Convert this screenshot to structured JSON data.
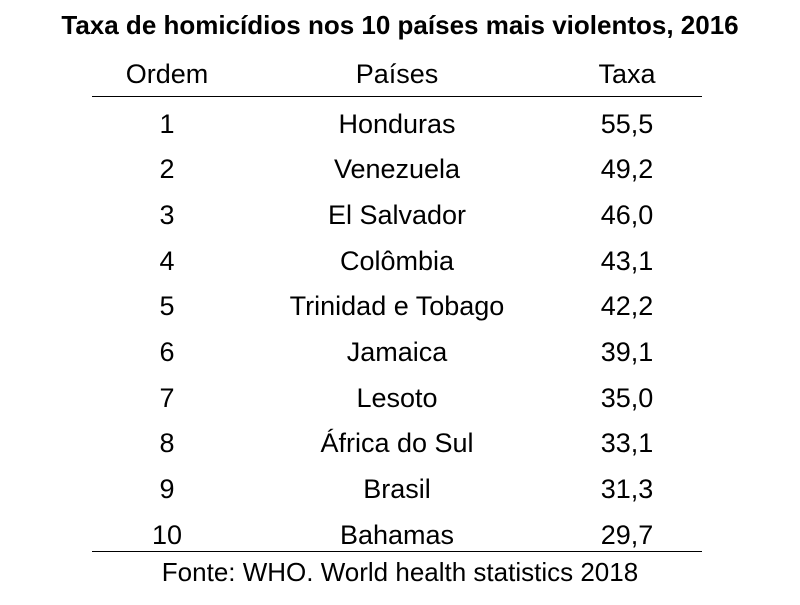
{
  "chart_data": {
    "type": "table",
    "title": "Taxa de homicídios nos 10 países mais violentos, 2016",
    "columns": [
      "Ordem",
      "Países",
      "Taxa"
    ],
    "rows": [
      {
        "rank": "1",
        "country": "Honduras",
        "rate": "55,5"
      },
      {
        "rank": "2",
        "country": "Venezuela",
        "rate": "49,2"
      },
      {
        "rank": "3",
        "country": "El Salvador",
        "rate": "46,0"
      },
      {
        "rank": "4",
        "country": "Colômbia",
        "rate": "43,1"
      },
      {
        "rank": "5",
        "country": "Trinidad e Tobago",
        "rate": "42,2"
      },
      {
        "rank": "6",
        "country": "Jamaica",
        "rate": "39,1"
      },
      {
        "rank": "7",
        "country": "Lesoto",
        "rate": "35,0"
      },
      {
        "rank": "8",
        "country": "África do Sul",
        "rate": "33,1"
      },
      {
        "rank": "9",
        "country": "Brasil",
        "rate": "31,3"
      },
      {
        "rank": "10",
        "country": "Bahamas",
        "rate": "29,7"
      }
    ],
    "source": "Fonte: WHO. World health statistics 2018"
  }
}
